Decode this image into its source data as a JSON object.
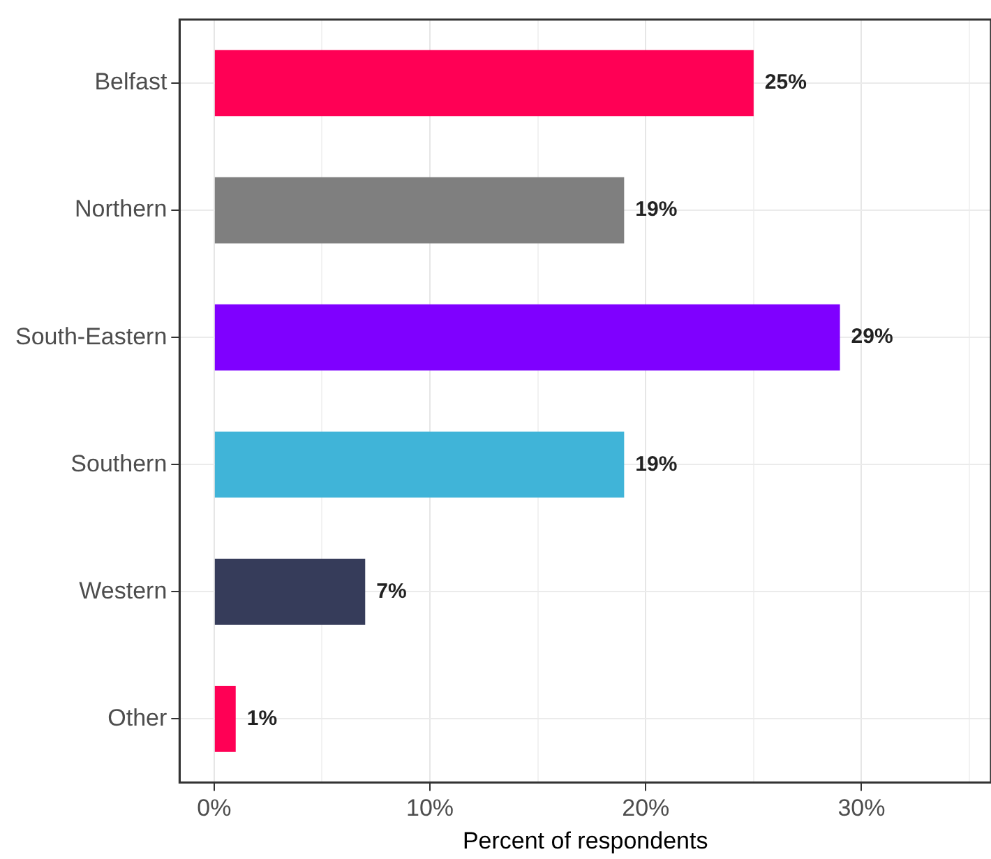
{
  "chart_data": {
    "type": "bar",
    "orientation": "horizontal",
    "xlabel": "Percent of respondents",
    "categories": [
      "Belfast",
      "Northern",
      "South-Eastern",
      "Southern",
      "Western",
      "Other"
    ],
    "values": [
      25,
      19,
      29,
      19,
      7,
      1
    ],
    "colors": [
      "#ff0055",
      "#7f7f7f",
      "#7f00ff",
      "#40b4d8",
      "#363c5a",
      "#ff0055"
    ],
    "value_labels": [
      "25%",
      "19%",
      "29%",
      "19%",
      "7%",
      "1%"
    ],
    "xlim": [
      -1.6,
      36
    ],
    "xticks": [
      {
        "value": 0,
        "label": "0%"
      },
      {
        "value": 5,
        "label": null
      },
      {
        "value": 10,
        "label": "10%"
      },
      {
        "value": 15,
        "label": null
      },
      {
        "value": 20,
        "label": "20%"
      },
      {
        "value": 25,
        "label": null
      },
      {
        "value": 30,
        "label": "30%"
      },
      {
        "value": 35,
        "label": null
      }
    ],
    "grid": true,
    "legend": false
  }
}
